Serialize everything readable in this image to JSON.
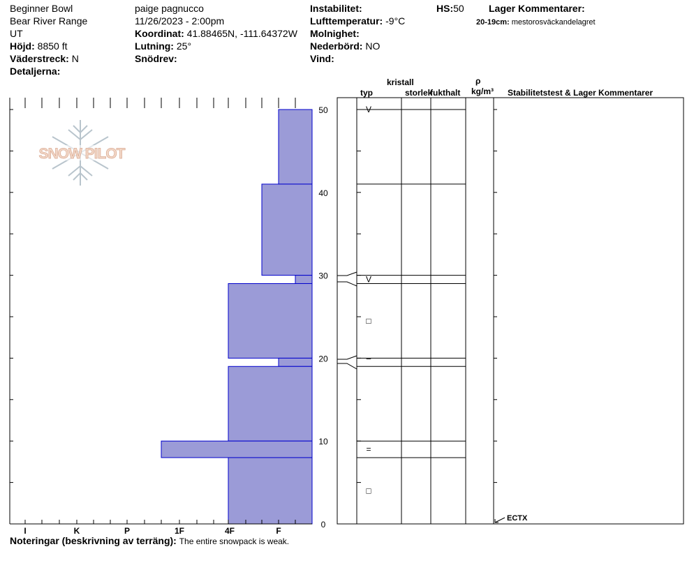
{
  "header": {
    "location": "Beginner Bowl",
    "range": "Bear River Range",
    "state": "UT",
    "elevation_label": "Höjd:",
    "elevation_value": "8850 ft",
    "aspect_label": "Väderstreck:",
    "aspect_value": "N",
    "details_label": "Detaljerna:",
    "observer": "paige pagnucco",
    "datetime": "11/26/2023 - 2:00pm",
    "coord_label": "Koordinat:",
    "coord_value": "41.88465N, -111.64372W",
    "slope_label": "Lutning:",
    "slope_value": "25°",
    "drift_label": "Snödrev:",
    "instability_label": "Instabilitet:",
    "airtemp_label": "Lufttemperatur:",
    "airtemp_value": "-9°C",
    "sky_label": "Molnighet:",
    "precip_label": "Nederbörd:",
    "precip_value": "NO",
    "wind_label": "Vind:",
    "hs_label": "HS:",
    "hs_value": "50",
    "layer_comments_label": "Lager Kommentarer:",
    "layer_comment_depth": "20-19cm:",
    "layer_comment_text": "mestorosväckandelagret"
  },
  "columns": {
    "crystal": "kristall",
    "type": "typ",
    "size": "storlek",
    "moisture": "fukthalt",
    "rho": "ρ",
    "density_unit": "kg/m³",
    "stability": "Stabilitetstest & Lager Kommentarer"
  },
  "logo": {
    "text": "SNOW PILOT"
  },
  "notes": {
    "label": "Noteringar (beskrivning av terräng):",
    "text": "The entire snowpack is weak."
  },
  "stability_tests": [
    {
      "depth": 0,
      "label": "ECTX"
    }
  ],
  "chart_data": {
    "type": "bar",
    "title": "",
    "xlabel": "",
    "ylabel": "",
    "ylim": [
      0,
      50
    ],
    "y_ticks": [
      "0",
      "10",
      "20",
      "30",
      "40",
      "50"
    ],
    "hardness_categories": [
      "I",
      "K",
      "P",
      "1F",
      "4F",
      "F"
    ],
    "hardness_scale_note": "bars extend from right edge; F = fist, 4F = four finger, 1F = one finger, P = pencil, K = knife, I = ice",
    "layers": [
      {
        "top": 50,
        "bottom": 41,
        "hardness": "F"
      },
      {
        "top": 41,
        "bottom": 30,
        "hardness": "4F-F"
      },
      {
        "top": 30,
        "bottom": 29,
        "hardness": "F-"
      },
      {
        "top": 29,
        "bottom": 20,
        "hardness": "4F"
      },
      {
        "top": 20,
        "bottom": 19,
        "hardness": "F"
      },
      {
        "top": 19,
        "bottom": 10,
        "hardness": "4F"
      },
      {
        "top": 10,
        "bottom": 8,
        "hardness": "1F-"
      },
      {
        "top": 8,
        "bottom": 0,
        "hardness": "4F"
      }
    ],
    "layer_boundaries": [
      50,
      41,
      30,
      29,
      20,
      19,
      10,
      8
    ],
    "grain_symbols": [
      {
        "depth": 50,
        "symbol": "V"
      },
      {
        "depth": 29.5,
        "symbol": "V"
      },
      {
        "depth": 24.5,
        "symbol": "□"
      },
      {
        "depth": 20,
        "symbol": "–"
      },
      {
        "depth": 9,
        "symbol": "="
      },
      {
        "depth": 4,
        "symbol": "□"
      }
    ],
    "fill_color": "#9b9bd7",
    "edge_color": "#0000cc"
  }
}
